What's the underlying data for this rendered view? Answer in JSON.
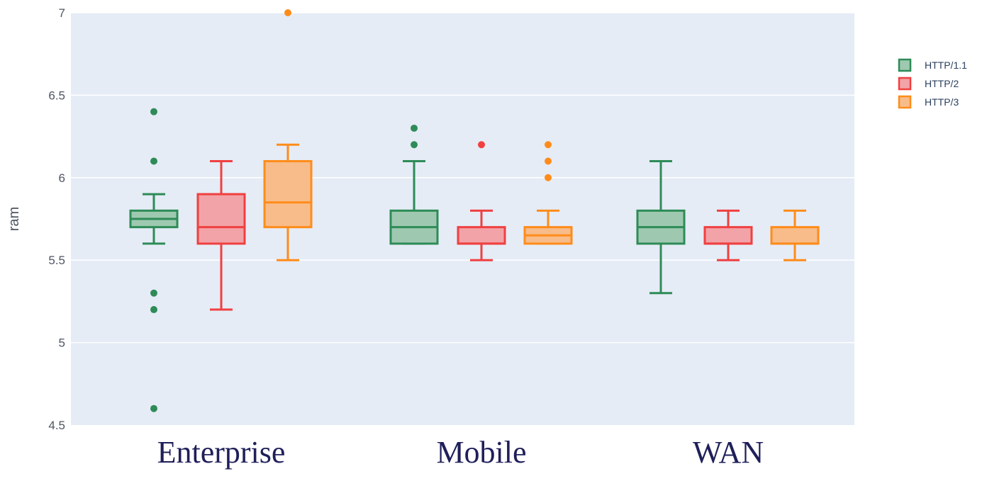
{
  "chart_data": {
    "type": "box",
    "title": "",
    "xlabel": "",
    "ylabel": "ram",
    "ylim": [
      4.5,
      7
    ],
    "yticks": [
      "4.5",
      "5",
      "5.5",
      "6",
      "6.5",
      "7"
    ],
    "grid": true,
    "legend_position": "top-right",
    "categories": [
      "Enterprise",
      "Mobile",
      "WAN"
    ],
    "series": [
      {
        "name": "HTTP/1.1",
        "color": "#2e8b57",
        "fill": "#9ec9b0",
        "boxes": [
          {
            "category": "Enterprise",
            "min": 5.6,
            "q1": 5.7,
            "median": 5.75,
            "q3": 5.8,
            "max": 5.9,
            "outliers": [
              6.4,
              6.1,
              5.3,
              5.2,
              4.6
            ]
          },
          {
            "category": "Mobile",
            "min": 5.6,
            "q1": 5.6,
            "median": 5.7,
            "q3": 5.8,
            "max": 6.1,
            "outliers": [
              6.3,
              6.2
            ]
          },
          {
            "category": "WAN",
            "min": 5.3,
            "q1": 5.6,
            "median": 5.7,
            "q3": 5.8,
            "max": 6.1,
            "outliers": []
          }
        ]
      },
      {
        "name": "HTTP/2",
        "color": "#f04040",
        "fill": "#f2a3a8",
        "boxes": [
          {
            "category": "Enterprise",
            "min": 5.2,
            "q1": 5.6,
            "median": 5.7,
            "q3": 5.9,
            "max": 6.1,
            "outliers": []
          },
          {
            "category": "Mobile",
            "min": 5.5,
            "q1": 5.6,
            "median": 5.6,
            "q3": 5.7,
            "max": 5.8,
            "outliers": [
              6.2
            ]
          },
          {
            "category": "WAN",
            "min": 5.5,
            "q1": 5.6,
            "median": 5.6,
            "q3": 5.7,
            "max": 5.8,
            "outliers": []
          }
        ]
      },
      {
        "name": "HTTP/3",
        "color": "#ff8c1a",
        "fill": "#f7bc8a",
        "boxes": [
          {
            "category": "Enterprise",
            "min": 5.5,
            "q1": 5.7,
            "median": 5.85,
            "q3": 6.1,
            "max": 6.2,
            "outliers": [
              7.0
            ]
          },
          {
            "category": "Mobile",
            "min": 5.6,
            "q1": 5.6,
            "median": 5.65,
            "q3": 5.7,
            "max": 5.8,
            "outliers": [
              6.2,
              6.1,
              6.0
            ]
          },
          {
            "category": "WAN",
            "min": 5.5,
            "q1": 5.6,
            "median": 5.6,
            "q3": 5.7,
            "max": 5.8,
            "outliers": []
          }
        ]
      }
    ],
    "plot_background": "#e5ecf6",
    "gridline_color": "#ffffff",
    "tick_text_color": "#4d5663",
    "category_label_color": "#1f1f5a"
  }
}
